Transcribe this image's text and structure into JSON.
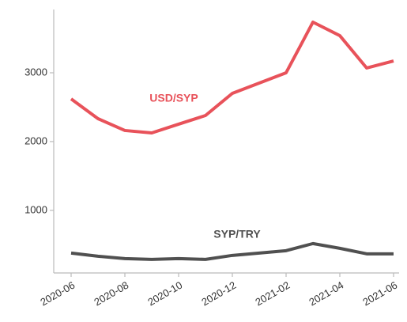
{
  "chart_data": {
    "type": "line",
    "x": [
      "2020-06",
      "2020-07",
      "2020-08",
      "2020-09",
      "2020-10",
      "2020-11",
      "2020-12",
      "2021-01",
      "2021-02",
      "2021-03",
      "2021-04",
      "2021-05",
      "2021-06"
    ],
    "series": [
      {
        "name": "USD/SYP",
        "color": "#e8525a",
        "values": [
          2620,
          2333,
          2161,
          2126,
          2253,
          2379,
          2701,
          2850,
          3000,
          3736,
          3540,
          3069,
          3172
        ]
      },
      {
        "name": "SYP/TRY",
        "color": "#505050",
        "values": [
          379,
          333,
          299,
          287,
          299,
          287,
          345,
          379,
          414,
          517,
          448,
          368,
          368
        ]
      }
    ],
    "xlim": [
      "2020-06",
      "2021-06"
    ],
    "xticks": [
      "2020-06",
      "2020-08",
      "2020-10",
      "2020-12",
      "2021-02",
      "2021-04",
      "2021-06"
    ],
    "ylim": [
      90,
      3920
    ],
    "yticks": [
      1000,
      2000,
      3000
    ],
    "grid": false
  }
}
